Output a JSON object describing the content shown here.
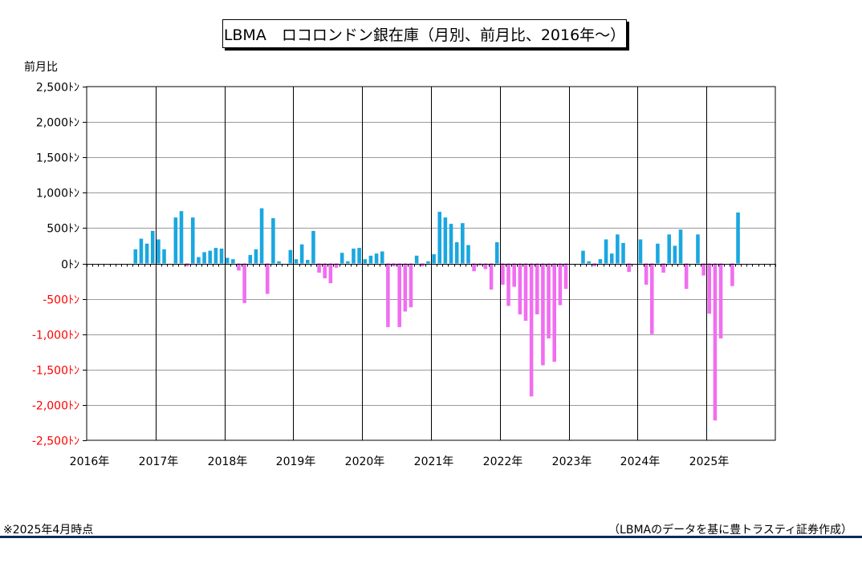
{
  "chart_data": {
    "type": "bar",
    "title": "LBMA　ロコロンドン銀在庫（月別、前月比、2016年～）",
    "ylabel": "前月比",
    "ylim": [
      -2500,
      2500
    ],
    "yticks": [
      "2,500ﾄﾝ",
      "2,000ﾄﾝ",
      "1,500ﾄﾝ",
      "1,000ﾄﾝ",
      "500ﾄﾝ",
      "0ﾄﾝ",
      "-500ﾄﾝ",
      "-1,000ﾄﾝ",
      "-1,500ﾄﾝ",
      "-2,000ﾄﾝ",
      "-2,500ﾄﾝ"
    ],
    "xticks": [
      "2016年",
      "2017年",
      "2018年",
      "2019年",
      "2020年",
      "2021年",
      "2022年",
      "2023年",
      "2024年",
      "2025年"
    ],
    "start": "2016-01",
    "grid": true,
    "colors": {
      "positive": "#1aa7e0",
      "negative": "#f06ef0",
      "negative_tick_label": "#ff0000"
    },
    "values": [
      0,
      0,
      0,
      0,
      0,
      0,
      0,
      0,
      200,
      350,
      280,
      460,
      340,
      200,
      0,
      650,
      740,
      -40,
      650,
      90,
      160,
      180,
      220,
      210,
      80,
      60,
      -100,
      -560,
      120,
      200,
      780,
      -430,
      640,
      30,
      0,
      190,
      60,
      270,
      50,
      460,
      -130,
      -210,
      -280,
      -60,
      150,
      30,
      210,
      220,
      60,
      110,
      140,
      170,
      -900,
      -40,
      -900,
      -680,
      -620,
      110,
      -40,
      30,
      130,
      730,
      650,
      560,
      300,
      570,
      260,
      -110,
      -30,
      -80,
      -370,
      300,
      -300,
      -600,
      -330,
      -720,
      -810,
      -1880,
      -720,
      -1440,
      -1060,
      -1390,
      -590,
      -360,
      0,
      0,
      180,
      30,
      -40,
      60,
      340,
      140,
      410,
      290,
      -120,
      0,
      340,
      -300,
      -1000,
      280,
      -130,
      410,
      250,
      480,
      -360,
      0,
      410,
      -170,
      -710,
      -2220,
      -1060,
      0,
      -320,
      720
    ]
  },
  "footer": {
    "note_left": "※2025年4月時点",
    "note_right": "（LBMAのデータを基に豊トラスティ証券作成）"
  }
}
